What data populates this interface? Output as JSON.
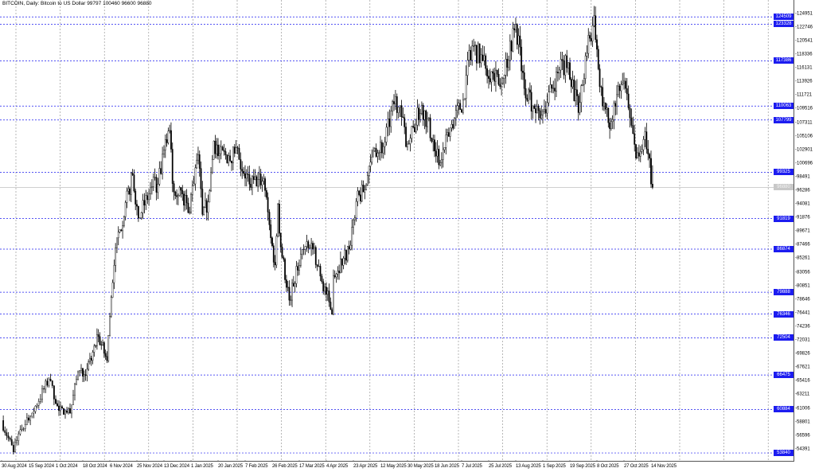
{
  "title": "BITCOIN, Daily:  Bitcoin to US Dollar  99797 100460 96600 96880",
  "chart_data": {
    "type": "candlestick",
    "symbol": "BITCOIN",
    "timeframe": "Daily",
    "last_ohlc": {
      "open": 99797,
      "high": 100460,
      "low": 96600,
      "close": 96880
    },
    "current_price_label": "96880",
    "ylim": [
      52430,
      127250
    ],
    "grid": true,
    "y_ticks": [
      "124951",
      "122746",
      "120541",
      "118336",
      "116131",
      "113926",
      "111721",
      "109516",
      "107311",
      "105106",
      "102901",
      "100696",
      "98491",
      "96286",
      "94081",
      "91876",
      "89671",
      "87466",
      "85261",
      "83056",
      "80851",
      "78646",
      "76441",
      "74236",
      "72031",
      "69826",
      "67621",
      "65416",
      "63211",
      "61006",
      "58801",
      "56596",
      "54391"
    ],
    "x_ticks": [
      "30 Aug 2024",
      "15 Sep 2024",
      "1 Oct 2024",
      "18 Oct 2024",
      "6 Nov 2024",
      "25 Nov 2024",
      "13 Dec 2024",
      "1 Jan 2025",
      "20 Jan 2025",
      "7 Feb 2025",
      "26 Feb 2025",
      "17 Mar 2025",
      "4 Apr 2025",
      "23 Apr 2025",
      "12 May 2025",
      "30 May 2025",
      "18 Jun 2025",
      "7 Jul 2025",
      "25 Jul 2025",
      "13 Aug 2025",
      "1 Sep 2025",
      "19 Sep 2025",
      "8 Oct 2025",
      "27 Oct 2025",
      "14 Nov 2025"
    ],
    "x_tick_dates": [
      "2024-08-30",
      "2024-09-15",
      "2024-10-01",
      "2024-10-18",
      "2024-11-06",
      "2024-11-25",
      "2024-12-13",
      "2025-01-01",
      "2025-01-20",
      "2025-02-07",
      "2025-02-26",
      "2025-03-17",
      "2025-04-04",
      "2025-04-23",
      "2025-05-12",
      "2025-05-30",
      "2025-06-18",
      "2025-07-07",
      "2025-07-25",
      "2025-08-13",
      "2025-09-01",
      "2025-09-19",
      "2025-10-08",
      "2025-10-27",
      "2025-11-14"
    ],
    "levels": [
      "124509",
      "123328",
      "117386",
      "110063",
      "107799",
      "99325",
      "91819",
      "86874",
      "79888",
      "76346",
      "72504",
      "66475",
      "60884",
      "53840"
    ],
    "level_color": "#1c1cf0",
    "candle_colors": {
      "bull_body": "#ffffff",
      "bear_body": "#000000",
      "outline": "#000000"
    },
    "closes": [
      [
        "2024-08-30",
        59100
      ],
      [
        "2024-09-06",
        54000
      ],
      [
        "2024-09-10",
        57600
      ],
      [
        "2024-09-17",
        60300
      ],
      [
        "2024-09-27",
        65800
      ],
      [
        "2024-10-03",
        60700
      ],
      [
        "2024-10-10",
        60300
      ],
      [
        "2024-10-15",
        67000
      ],
      [
        "2024-10-21",
        67400
      ],
      [
        "2024-10-29",
        72700
      ],
      [
        "2024-11-04",
        68800
      ],
      [
        "2024-11-06",
        76000
      ],
      [
        "2024-11-11",
        88700
      ],
      [
        "2024-11-13",
        90000
      ],
      [
        "2024-11-22",
        98900
      ],
      [
        "2024-11-26",
        91900
      ],
      [
        "2024-12-05",
        97000
      ],
      [
        "2024-12-09",
        97400
      ],
      [
        "2024-12-16",
        106000
      ],
      [
        "2024-12-17",
        106100
      ],
      [
        "2024-12-19",
        97500
      ],
      [
        "2024-12-26",
        95800
      ],
      [
        "2024-12-30",
        92800
      ],
      [
        "2025-01-06",
        102200
      ],
      [
        "2025-01-09",
        92500
      ],
      [
        "2025-01-13",
        94500
      ],
      [
        "2025-01-17",
        104400
      ],
      [
        "2025-01-20",
        102000
      ],
      [
        "2025-01-27",
        102000
      ],
      [
        "2025-01-31",
        102400
      ],
      [
        "2025-02-03",
        101400
      ],
      [
        "2025-02-10",
        97400
      ],
      [
        "2025-02-20",
        98300
      ],
      [
        "2025-02-25",
        88700
      ],
      [
        "2025-02-28",
        84300
      ],
      [
        "2025-03-02",
        94200
      ],
      [
        "2025-03-04",
        87200
      ],
      [
        "2025-03-10",
        78600
      ],
      [
        "2025-03-19",
        86800
      ],
      [
        "2025-03-26",
        86900
      ],
      [
        "2025-03-31",
        82500
      ],
      [
        "2025-04-06",
        78300
      ],
      [
        "2025-04-08",
        76300
      ],
      [
        "2025-04-09",
        82600
      ],
      [
        "2025-04-21",
        87500
      ],
      [
        "2025-04-25",
        94600
      ],
      [
        "2025-05-01",
        96500
      ],
      [
        "2025-05-08",
        103200
      ],
      [
        "2025-05-14",
        103500
      ],
      [
        "2025-05-22",
        111600
      ],
      [
        "2025-05-30",
        103900
      ],
      [
        "2025-06-09",
        110200
      ],
      [
        "2025-06-17",
        104600
      ],
      [
        "2025-06-22",
        100900
      ],
      [
        "2025-06-30",
        107100
      ],
      [
        "2025-07-09",
        111300
      ],
      [
        "2025-07-11",
        117500
      ],
      [
        "2025-07-14",
        119800
      ],
      [
        "2025-07-21",
        117400
      ],
      [
        "2025-08-02",
        113200
      ],
      [
        "2025-08-13",
        123300
      ],
      [
        "2025-08-19",
        112900
      ],
      [
        "2025-08-25",
        110100
      ],
      [
        "2025-09-01",
        109200
      ],
      [
        "2025-09-12",
        115900
      ],
      [
        "2025-09-18",
        117100
      ],
      [
        "2025-09-25",
        109000
      ],
      [
        "2025-10-01",
        118600
      ],
      [
        "2025-10-06",
        124700
      ],
      [
        "2025-10-10",
        113200
      ],
      [
        "2025-10-17",
        106400
      ],
      [
        "2025-10-20",
        110500
      ],
      [
        "2025-10-27",
        114100
      ],
      [
        "2025-11-04",
        101600
      ],
      [
        "2025-11-10",
        105900
      ],
      [
        "2025-11-15",
        96880
      ]
    ]
  }
}
